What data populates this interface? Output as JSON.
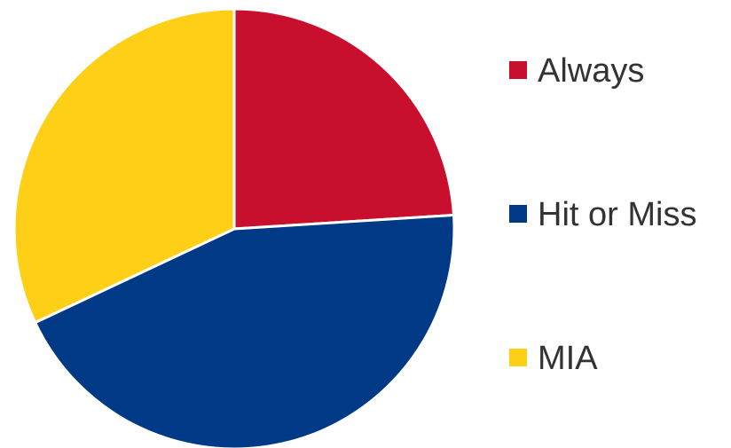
{
  "chart_data": {
    "type": "pie",
    "categories": [
      "Always",
      "Hit or Miss",
      "MIA"
    ],
    "values": [
      24,
      44,
      32
    ],
    "colors": [
      "#C8102E",
      "#003A86",
      "#FDD017"
    ],
    "legend": "right",
    "title": "",
    "start_angle": "12 o'clock",
    "direction": "clockwise"
  }
}
